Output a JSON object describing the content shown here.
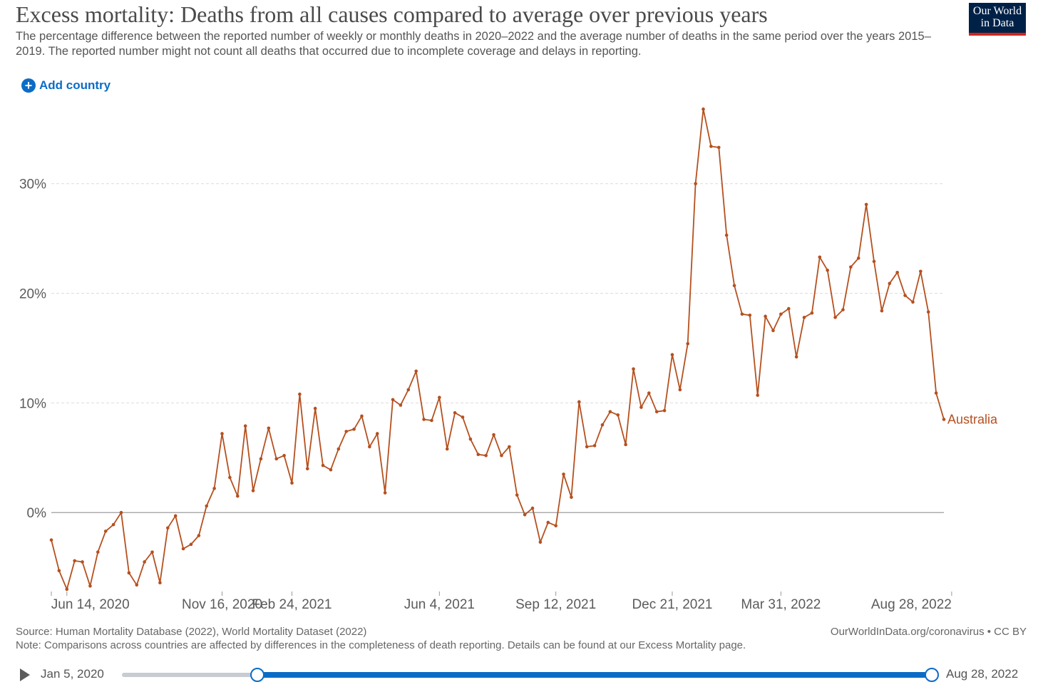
{
  "header": {
    "title": "Excess mortality: Deaths from all causes compared to average over previous years",
    "subtitle": "The percentage difference between the reported number of weekly or monthly deaths in 2020–2022 and the average number of deaths in the same period over the years 2015–2019. The reported number might not count all deaths that occurred due to incomplete coverage and delays in reporting.",
    "logo_line1": "Our World",
    "logo_line2": "in Data"
  },
  "controls": {
    "add_country_label": "Add country",
    "add_icon": "plus-circle-icon"
  },
  "footer": {
    "source": "Source: Human Mortality Database (2022), World Mortality Dataset (2022)",
    "note": "Note: Comparisons across countries are affected by differences in the completeness of death reporting. Details can be found at our Excess Mortality page.",
    "credit": "OurWorldInData.org/coronavirus • CC BY"
  },
  "timeline": {
    "start_label": "Jan 5, 2020",
    "end_label": "Aug 28, 2022",
    "selected_start_fraction": 0.167,
    "selected_end_fraction": 1.0
  },
  "chart_data": {
    "type": "line",
    "title": "Excess mortality: Deaths from all causes compared to average over previous years",
    "ylim": [
      -7.2,
      37
    ],
    "yticks": [
      0,
      10,
      20,
      30
    ],
    "ytick_labels": [
      "0%",
      "10%",
      "20%",
      "30%"
    ],
    "xtick_labels": [
      "Jun 14, 2020",
      "Nov 16, 2020",
      "Feb 24, 2021",
      "Jun 4, 2021",
      "Sep 12, 2021",
      "Dec 21, 2021",
      "Mar 31, 2022",
      "Aug 28, 2022"
    ],
    "xtick_index": [
      2,
      22,
      31,
      50,
      65,
      80,
      94,
      116
    ],
    "grid": true,
    "colors": {
      "series": "#b5501f",
      "grid": "#dcdcdc",
      "zero_line": "#9e9e9e",
      "text": "#5b5b5b"
    },
    "series": [
      {
        "name": "Australia",
        "values": [
          -2.5,
          -5.3,
          -7.0,
          -4.4,
          -4.5,
          -6.7,
          -3.6,
          -1.7,
          -1.1,
          0.0,
          -5.5,
          -6.6,
          -4.5,
          -3.6,
          -6.4,
          -1.4,
          -0.3,
          -3.3,
          -2.9,
          -2.1,
          0.6,
          2.2,
          7.2,
          3.2,
          1.5,
          7.9,
          2.0,
          4.9,
          7.7,
          4.9,
          5.2,
          2.7,
          10.8,
          4.0,
          9.5,
          4.3,
          3.9,
          5.8,
          7.4,
          7.6,
          8.8,
          6.0,
          7.2,
          1.8,
          10.3,
          9.8,
          11.2,
          12.9,
          8.5,
          8.4,
          10.5,
          5.8,
          9.1,
          8.7,
          6.7,
          5.3,
          5.2,
          7.1,
          5.2,
          6.0,
          1.6,
          -0.2,
          0.4,
          -2.7,
          -0.9,
          -1.2,
          3.5,
          1.4,
          10.1,
          6.0,
          6.1,
          8.0,
          9.2,
          8.9,
          6.2,
          13.1,
          9.6,
          10.9,
          9.2,
          9.3,
          14.4,
          11.2,
          15.4,
          30.0,
          36.8,
          33.4,
          33.3,
          25.3,
          20.7,
          18.1,
          18.0,
          10.7,
          17.9,
          16.6,
          18.1,
          18.6,
          14.2,
          17.8,
          18.2,
          23.3,
          22.1,
          17.8,
          18.5,
          22.4,
          23.2,
          28.1,
          22.9,
          18.4,
          20.9,
          21.9,
          19.8,
          19.2,
          22.0,
          18.3,
          10.9,
          8.5
        ]
      }
    ]
  }
}
